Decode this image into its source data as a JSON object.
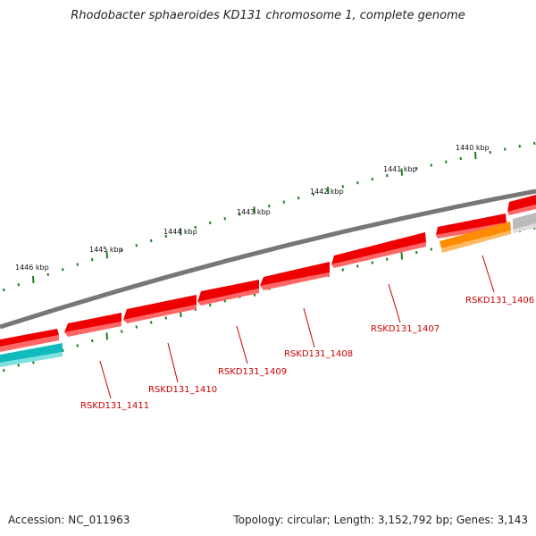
{
  "title": "Rhodobacter sphaeroides KD131 chromosome 1, complete genome",
  "footer": {
    "accession": "Accession: NC_011963",
    "summary": "Topology: circular; Length: 3,152,792 bp; Genes: 3,143"
  },
  "scale_labels": [
    "1440 kbp",
    "1441 kbp",
    "1442 kbp",
    "1443 kbp",
    "1444 kbp",
    "1445 kbp",
    "1446 kbp"
  ],
  "genes": [
    {
      "locus": "RSKD131_1406",
      "color": "#ff8c00"
    },
    {
      "locus": "RSKD131_1407",
      "color": "#ee0000"
    },
    {
      "locus": "RSKD131_1408",
      "color": "#ee0000"
    },
    {
      "locus": "RSKD131_1409",
      "color": "#ee0000"
    },
    {
      "locus": "RSKD131_1410",
      "color": "#ee0000"
    },
    {
      "locus": "RSKD131_1411",
      "color": "#ee0000"
    }
  ],
  "colors": {
    "backbone": "#777777",
    "forward_gene": "#ee0000",
    "reverse_gene_orange": "#ff8c00",
    "reverse_gene_cyan": "#11bbbb",
    "reverse_gene_gray": "#bbbbbb",
    "ticks": "#1f7a1f",
    "label": "#cc0000"
  }
}
